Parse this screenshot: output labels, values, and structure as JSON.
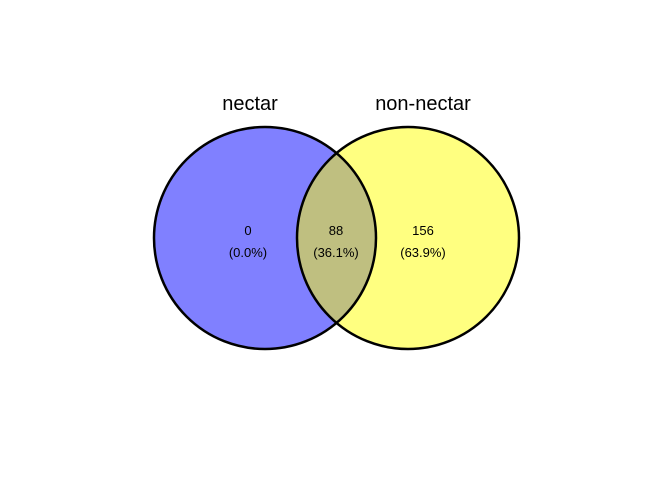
{
  "venn": {
    "sets": [
      {
        "name": "nectar",
        "color": "#8080ff"
      },
      {
        "name": "non-nectar",
        "color": "#ffff80"
      }
    ],
    "overlap_color": "#bfbf80",
    "regions": {
      "nectar_only": {
        "count": "0",
        "percent": "(0.0%)"
      },
      "both": {
        "count": "88",
        "percent": "(36.1%)"
      },
      "non_nectar_only": {
        "count": "156",
        "percent": "(63.9%)"
      }
    }
  }
}
